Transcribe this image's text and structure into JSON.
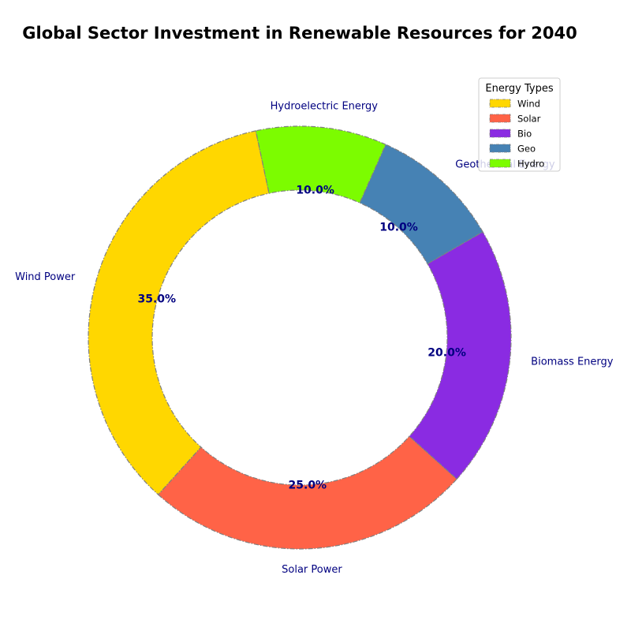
{
  "chart_data": {
    "type": "pie",
    "variant": "donut",
    "title": "Global Sector Investment in Renewable Resources for 2040",
    "categories": [
      "Wind Power",
      "Solar Power",
      "Biomass Energy",
      "Geothermal Energy",
      "Hydroelectric Energy"
    ],
    "values": [
      35,
      25,
      20,
      10,
      10
    ],
    "value_labels": [
      "35.0%",
      "25.0%",
      "20.0%",
      "10.0%",
      "10.0%"
    ],
    "colors": [
      "#FFD700",
      "#FF6347",
      "#8A2BE2",
      "#4682B4",
      "#7CFC00"
    ],
    "edge_color": "#808080",
    "legend": {
      "title": "Energy Types",
      "placement": "upper-right",
      "entries": [
        "Wind",
        "Solar",
        "Bio",
        "Geo",
        "Hydro"
      ]
    }
  }
}
